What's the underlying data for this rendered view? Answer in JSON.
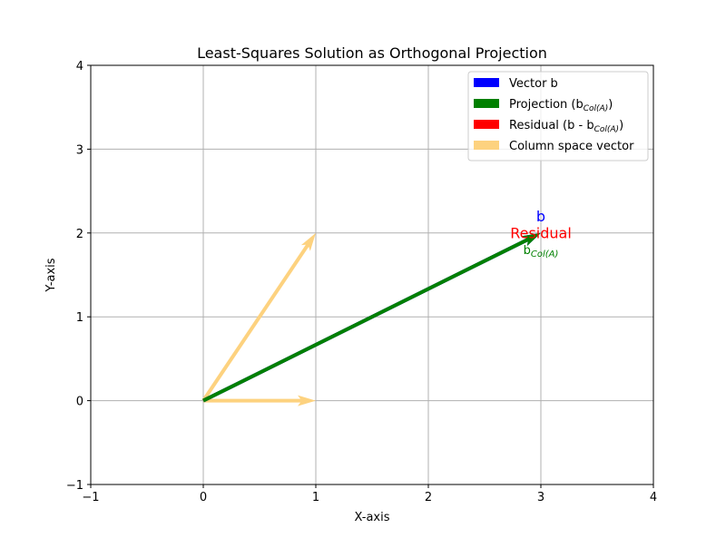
{
  "chart_data": {
    "type": "quiver",
    "title": "Least-Squares Solution as Orthogonal Projection",
    "xlabel": "X-axis",
    "ylabel": "Y-axis",
    "xlim": [
      -1,
      4
    ],
    "ylim": [
      -1,
      4
    ],
    "xticks": [
      -1,
      0,
      1,
      2,
      3,
      4
    ],
    "yticks": [
      -1,
      0,
      1,
      2,
      3,
      4
    ],
    "xtick_labels": [
      "−1",
      "0",
      "1",
      "2",
      "3",
      "4"
    ],
    "ytick_labels": [
      "−1",
      "0",
      "1",
      "2",
      "3",
      "4"
    ],
    "grid": true,
    "legend_position": "upper right",
    "colors": {
      "b": "#0000ff",
      "projection": "#008000",
      "residual": "#ff0000",
      "column_space": "#fdd27f",
      "grid": "#b0b0b0"
    },
    "vectors": [
      {
        "id": "col1",
        "name": "Column space vector",
        "start": [
          0,
          0
        ],
        "end": [
          1,
          0
        ],
        "color_key": "column_space"
      },
      {
        "id": "col2",
        "name": "Column space vector",
        "start": [
          0,
          0
        ],
        "end": [
          1,
          2
        ],
        "color_key": "column_space"
      },
      {
        "id": "b",
        "name": "Vector b",
        "start": [
          0,
          0
        ],
        "end": [
          3,
          2
        ],
        "color_key": "b"
      },
      {
        "id": "residual",
        "name": "Residual (b - b_Col(A))",
        "start": [
          3,
          2
        ],
        "end": [
          3,
          2
        ],
        "color_key": "residual"
      },
      {
        "id": "projection",
        "name": "Projection (b_Col(A))",
        "start": [
          0,
          0
        ],
        "end": [
          3,
          2
        ],
        "color_key": "projection"
      }
    ],
    "annotations": [
      {
        "id": "b",
        "text": "b",
        "x": 3,
        "y": 2.2,
        "color_key": "b",
        "size": "large"
      },
      {
        "id": "residual",
        "text": "Residual",
        "x": 3,
        "y": 2.0,
        "color_key": "residual",
        "size": "large"
      },
      {
        "id": "proj",
        "text": "b",
        "sub": "Col(A)",
        "x": 3,
        "y": 1.8,
        "color_key": "projection",
        "size": "normal"
      }
    ],
    "legend": [
      {
        "label": "Vector b",
        "sub": "",
        "color_key": "b"
      },
      {
        "label": "Projection (b",
        "sub": "Col(A)",
        "suffix": ")",
        "color_key": "projection"
      },
      {
        "label": "Residual (b - b",
        "sub": "Col(A)",
        "suffix": ")",
        "color_key": "residual"
      },
      {
        "label": "Column space vector",
        "sub": "",
        "color_key": "column_space"
      }
    ]
  }
}
